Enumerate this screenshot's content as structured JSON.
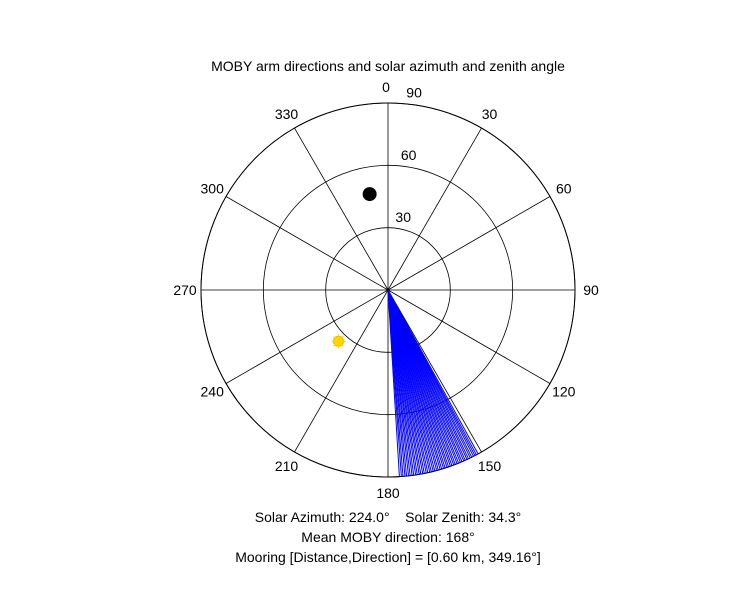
{
  "chart_data": {
    "type": "polar",
    "title": "MOBY arm directions and solar azimuth and zenith angle",
    "theta_zero_location": "top",
    "theta_direction": "clockwise",
    "theta_ticks": [
      "0",
      "30",
      "60",
      "90",
      "120",
      "150",
      "180",
      "210",
      "240",
      "270",
      "300",
      "330"
    ],
    "radial_axis": {
      "rlim": [
        0,
        90
      ],
      "ticks": [
        "30",
        "60",
        "90"
      ],
      "tick_angle_deg": 5
    },
    "grid": true,
    "colors": {
      "moby_arms": "#0000ff",
      "sun": "#ffd700",
      "mooring": "#000000",
      "grid": "#000000"
    },
    "series": [
      {
        "kind": "lines",
        "color": "#0000ff",
        "r": 90,
        "theta_deg": [
          151.2,
          151.8,
          152.3,
          152.8,
          153.4,
          153.9,
          154.5,
          155.0,
          155.6,
          156.1,
          156.7,
          157.2,
          157.8,
          158.3,
          158.9,
          159.4,
          160.0,
          160.5,
          161.1,
          161.6,
          162.2,
          162.7,
          163.3,
          163.8,
          164.4,
          164.9,
          165.5,
          166.0,
          166.6,
          167.1,
          167.7,
          168.2,
          168.8,
          169.3,
          169.9,
          170.4,
          171.0,
          171.5,
          172.1,
          172.6,
          173.2,
          173.7,
          174.3,
          174.8,
          175.4,
          175.9,
          176.5
        ]
      },
      {
        "kind": "marker",
        "shape": "sun",
        "color": "#ffd700",
        "theta_deg": 224.0,
        "r": 34.3
      },
      {
        "kind": "marker",
        "shape": "dot",
        "color": "#000000",
        "theta_deg": 349.16,
        "r": 47
      }
    ],
    "annotations": {
      "solar_line": "Solar Azimuth: 224.0°    Solar Zenith: 34.3°",
      "mean_line": "Mean MOBY direction: 168°",
      "mooring_line": "Mooring [Distance,Direction] = [0.60 km, 349.16°]"
    }
  }
}
